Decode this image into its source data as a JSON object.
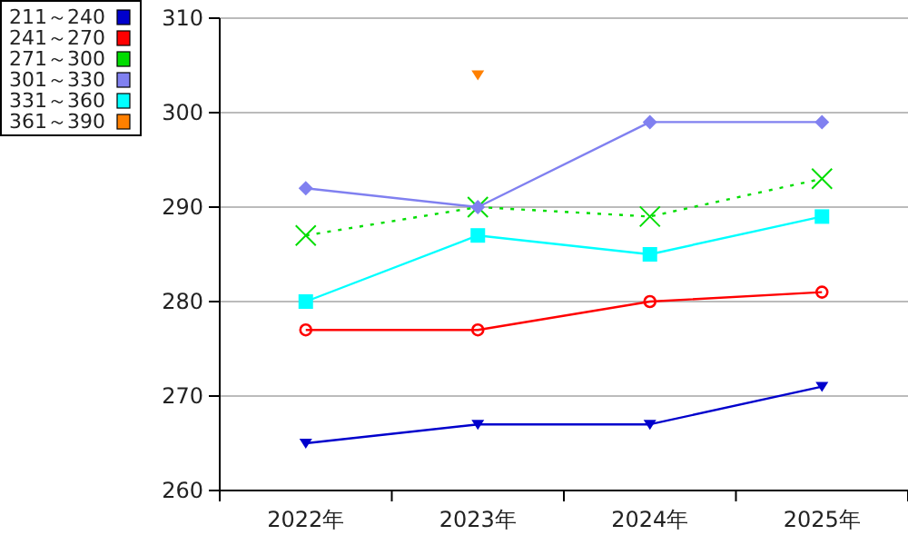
{
  "chart_data": {
    "type": "line",
    "categories": [
      "2022年",
      "2023年",
      "2024年",
      "2025年"
    ],
    "series": [
      {
        "name": "211～240",
        "color": "#0000cc",
        "values": [
          265,
          267,
          267,
          271
        ],
        "marker": "triangle"
      },
      {
        "name": "241～270",
        "color": "#ff0000",
        "values": [
          277,
          277,
          280,
          281
        ],
        "marker": "circle"
      },
      {
        "name": "271～300",
        "color": "#00dd00",
        "values": [
          287,
          290,
          289,
          293
        ],
        "marker": "cross",
        "line_style": "dotted"
      },
      {
        "name": "301～330",
        "color": "#8080f0",
        "values": [
          292,
          290,
          299,
          299
        ],
        "marker": "diamond"
      },
      {
        "name": "331～360",
        "color": "#00ffff",
        "values": [
          280,
          287,
          285,
          289
        ],
        "marker": "square"
      },
      {
        "name": "361～390",
        "color": "#ff8000",
        "values": [
          null,
          304,
          null,
          null
        ],
        "marker": "triangle"
      }
    ],
    "ylim": [
      260,
      310
    ],
    "yticks": [
      260,
      270,
      280,
      290,
      300,
      310
    ],
    "grid": "y",
    "legend": "top left"
  }
}
